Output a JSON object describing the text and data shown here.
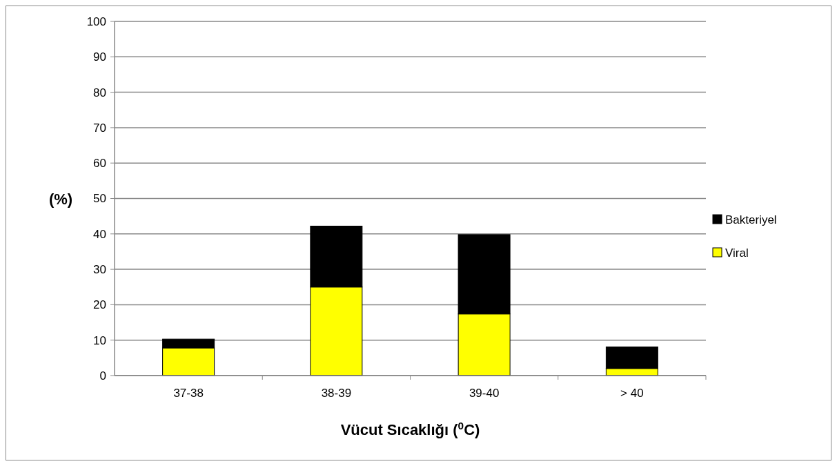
{
  "chart_data": {
    "type": "bar",
    "stacked": true,
    "xlabel": "Vücut Sıcaklığı ($^{0}$C)",
    "ylabel": "(%)",
    "categories": [
      "37-38",
      "38-39",
      "39-40",
      "> 40"
    ],
    "series": [
      {
        "name": "Viral",
        "color": "#ffff00",
        "values": [
          7.8,
          25,
          17.4,
          2
        ]
      },
      {
        "name": "Bakteriyel",
        "color": "#000000",
        "values": [
          2.5,
          17.2,
          22.4,
          6.1
        ]
      }
    ],
    "ylim": [
      0,
      100
    ],
    "yticks": [
      0,
      10,
      20,
      30,
      40,
      50,
      60,
      70,
      80,
      90,
      100
    ],
    "grid": "y",
    "legend": "right"
  }
}
